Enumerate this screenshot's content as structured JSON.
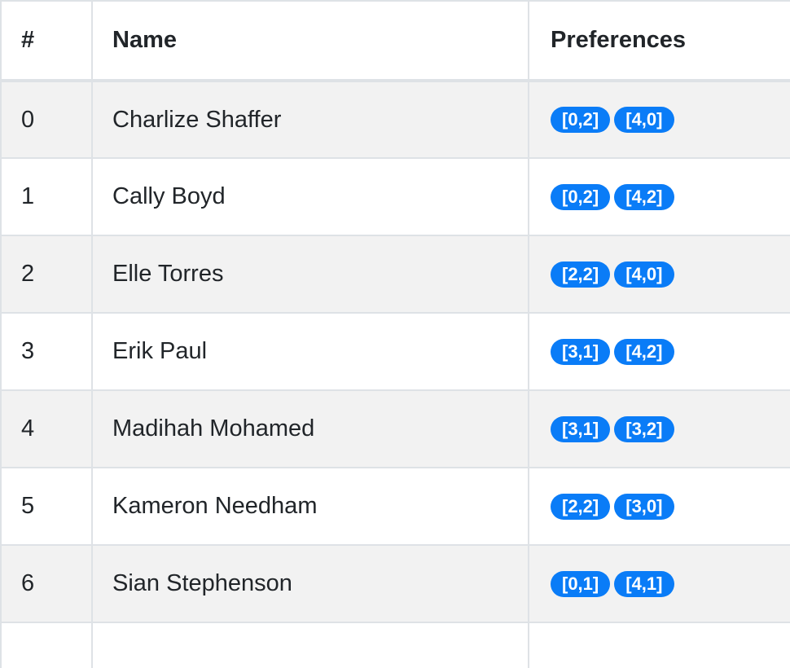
{
  "table": {
    "headers": {
      "index": "#",
      "name": "Name",
      "preferences": "Preferences"
    },
    "rows": [
      {
        "index": "0",
        "name": "Charlize Shaffer",
        "preferences": [
          "[0,2]",
          "[4,0]"
        ]
      },
      {
        "index": "1",
        "name": "Cally Boyd",
        "preferences": [
          "[0,2]",
          "[4,2]"
        ]
      },
      {
        "index": "2",
        "name": "Elle Torres",
        "preferences": [
          "[2,2]",
          "[4,0]"
        ]
      },
      {
        "index": "3",
        "name": "Erik Paul",
        "preferences": [
          "[3,1]",
          "[4,2]"
        ]
      },
      {
        "index": "4",
        "name": "Madihah Mohamed",
        "preferences": [
          "[3,1]",
          "[3,2]"
        ]
      },
      {
        "index": "5",
        "name": "Kameron Needham",
        "preferences": [
          "[2,2]",
          "[3,0]"
        ]
      },
      {
        "index": "6",
        "name": "Sian Stephenson",
        "preferences": [
          "[0,1]",
          "[4,1]"
        ]
      },
      {
        "index": "",
        "name": "",
        "preferences": [
          "",
          ""
        ]
      }
    ]
  },
  "colors": {
    "badge": "#0a7cf7",
    "stripe": "#f2f2f2",
    "border": "#dee2e6"
  }
}
